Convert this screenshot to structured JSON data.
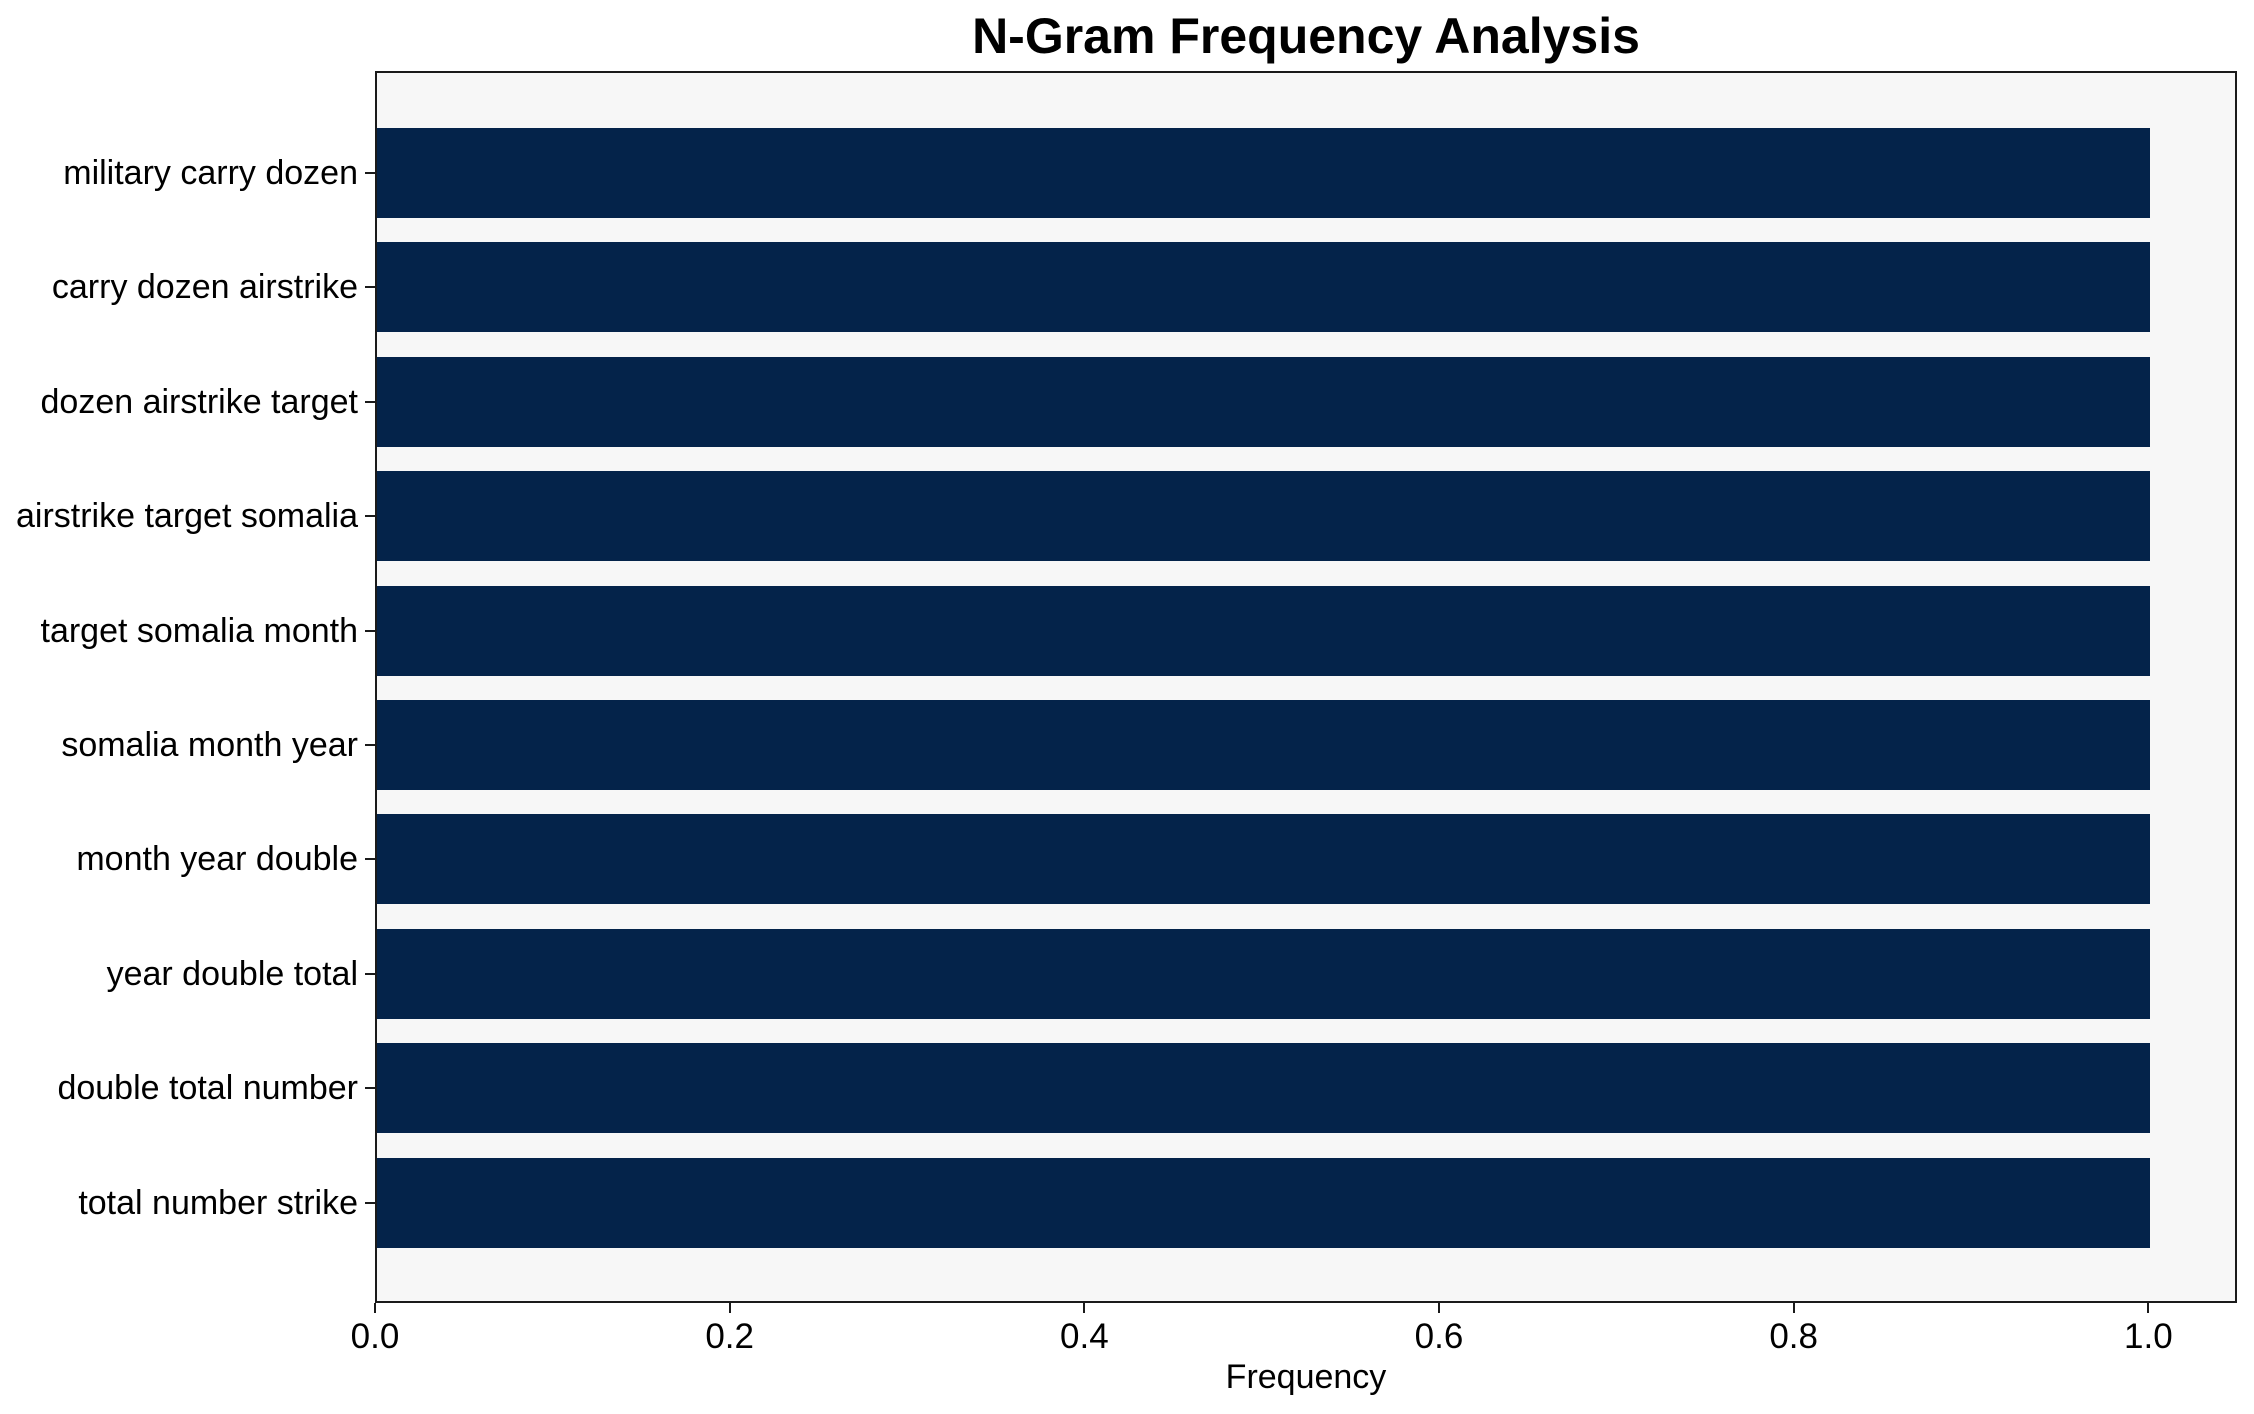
{
  "chart_data": {
    "type": "bar",
    "orientation": "horizontal",
    "title": "N-Gram Frequency Analysis",
    "xlabel": "Frequency",
    "ylabel": "",
    "categories": [
      "military carry dozen",
      "carry dozen airstrike",
      "dozen airstrike target",
      "airstrike target somalia",
      "target somalia month",
      "somalia month year",
      "month year double",
      "year double total",
      "double total number",
      "total number strike"
    ],
    "values": [
      1.0,
      1.0,
      1.0,
      1.0,
      1.0,
      1.0,
      1.0,
      1.0,
      1.0,
      1.0
    ],
    "xlim": [
      0,
      1.05
    ],
    "xticks": [
      0.0,
      0.2,
      0.4,
      0.6,
      0.8,
      1.0
    ],
    "xtick_labels": [
      "0.0",
      "0.2",
      "0.4",
      "0.6",
      "0.8",
      "1.0"
    ],
    "grid": false,
    "legend": null,
    "bar_color": "#04234a",
    "plot_background": "#f7f7f7",
    "figure_background": "#ffffff",
    "text_color": "#000000"
  }
}
